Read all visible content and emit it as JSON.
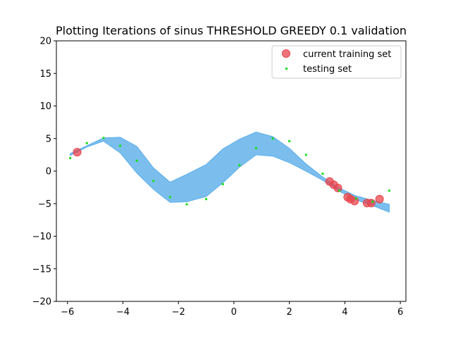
{
  "chart_data": {
    "type": "scatter",
    "title": "Plotting Iterations of sinus THRESHOLD GREEDY 0.1 validation",
    "xlabel": "",
    "ylabel": "",
    "xlim": [
      -6.4,
      6.2
    ],
    "ylim": [
      -20,
      20
    ],
    "xticks": [
      -6,
      -4,
      -2,
      0,
      2,
      4,
      6
    ],
    "yticks": [
      -20,
      -15,
      -10,
      -5,
      0,
      5,
      10,
      15,
      20
    ],
    "grid": false,
    "legend_position": "top-right",
    "band": {
      "color": "#5aaeea",
      "x": [
        -5.9,
        -5.3,
        -4.7,
        -4.1,
        -3.5,
        -2.9,
        -2.3,
        -1.7,
        -1.0,
        -0.4,
        0.2,
        0.8,
        1.4,
        2.0,
        2.6,
        3.2,
        3.8,
        4.4,
        5.0,
        5.6
      ],
      "upper": [
        2.7,
        3.9,
        5.1,
        5.2,
        3.8,
        0.5,
        -1.7,
        -0.5,
        1.0,
        3.4,
        4.9,
        6.0,
        5.3,
        3.5,
        1.1,
        -0.9,
        -2.6,
        -3.8,
        -4.5,
        -5.1
      ],
      "lower": [
        2.4,
        3.7,
        4.6,
        2.8,
        -0.3,
        -2.8,
        -4.8,
        -4.7,
        -3.9,
        -1.8,
        0.6,
        2.5,
        2.3,
        1.3,
        0.0,
        -1.4,
        -3.1,
        -4.4,
        -5.3,
        -6.3
      ]
    },
    "series": [
      {
        "name": "current training set",
        "color": "#e8464d",
        "marker": "circle-large",
        "x": [
          -5.65,
          3.45,
          3.6,
          3.75,
          4.1,
          4.2,
          4.35,
          4.8,
          4.95,
          5.25
        ],
        "y": [
          2.9,
          -1.6,
          -2.1,
          -2.6,
          -4.0,
          -4.3,
          -4.6,
          -4.9,
          -4.9,
          -4.3
        ]
      },
      {
        "name": "testing set",
        "color": "#1bdd1b",
        "marker": "square-small",
        "x": [
          -5.9,
          -5.3,
          -4.7,
          -4.1,
          -3.5,
          -2.9,
          -2.3,
          -1.7,
          -1.0,
          -0.4,
          0.2,
          0.8,
          1.4,
          2.0,
          2.6,
          3.2,
          3.8,
          4.4,
          5.0,
          5.6
        ],
        "y": [
          2.0,
          4.3,
          5.1,
          3.9,
          1.6,
          -1.5,
          -4.0,
          -5.1,
          -4.3,
          -2.0,
          0.9,
          3.5,
          5.0,
          4.6,
          2.5,
          -0.4,
          -3.0,
          -4.2,
          -4.7,
          -3.0
        ]
      }
    ]
  }
}
